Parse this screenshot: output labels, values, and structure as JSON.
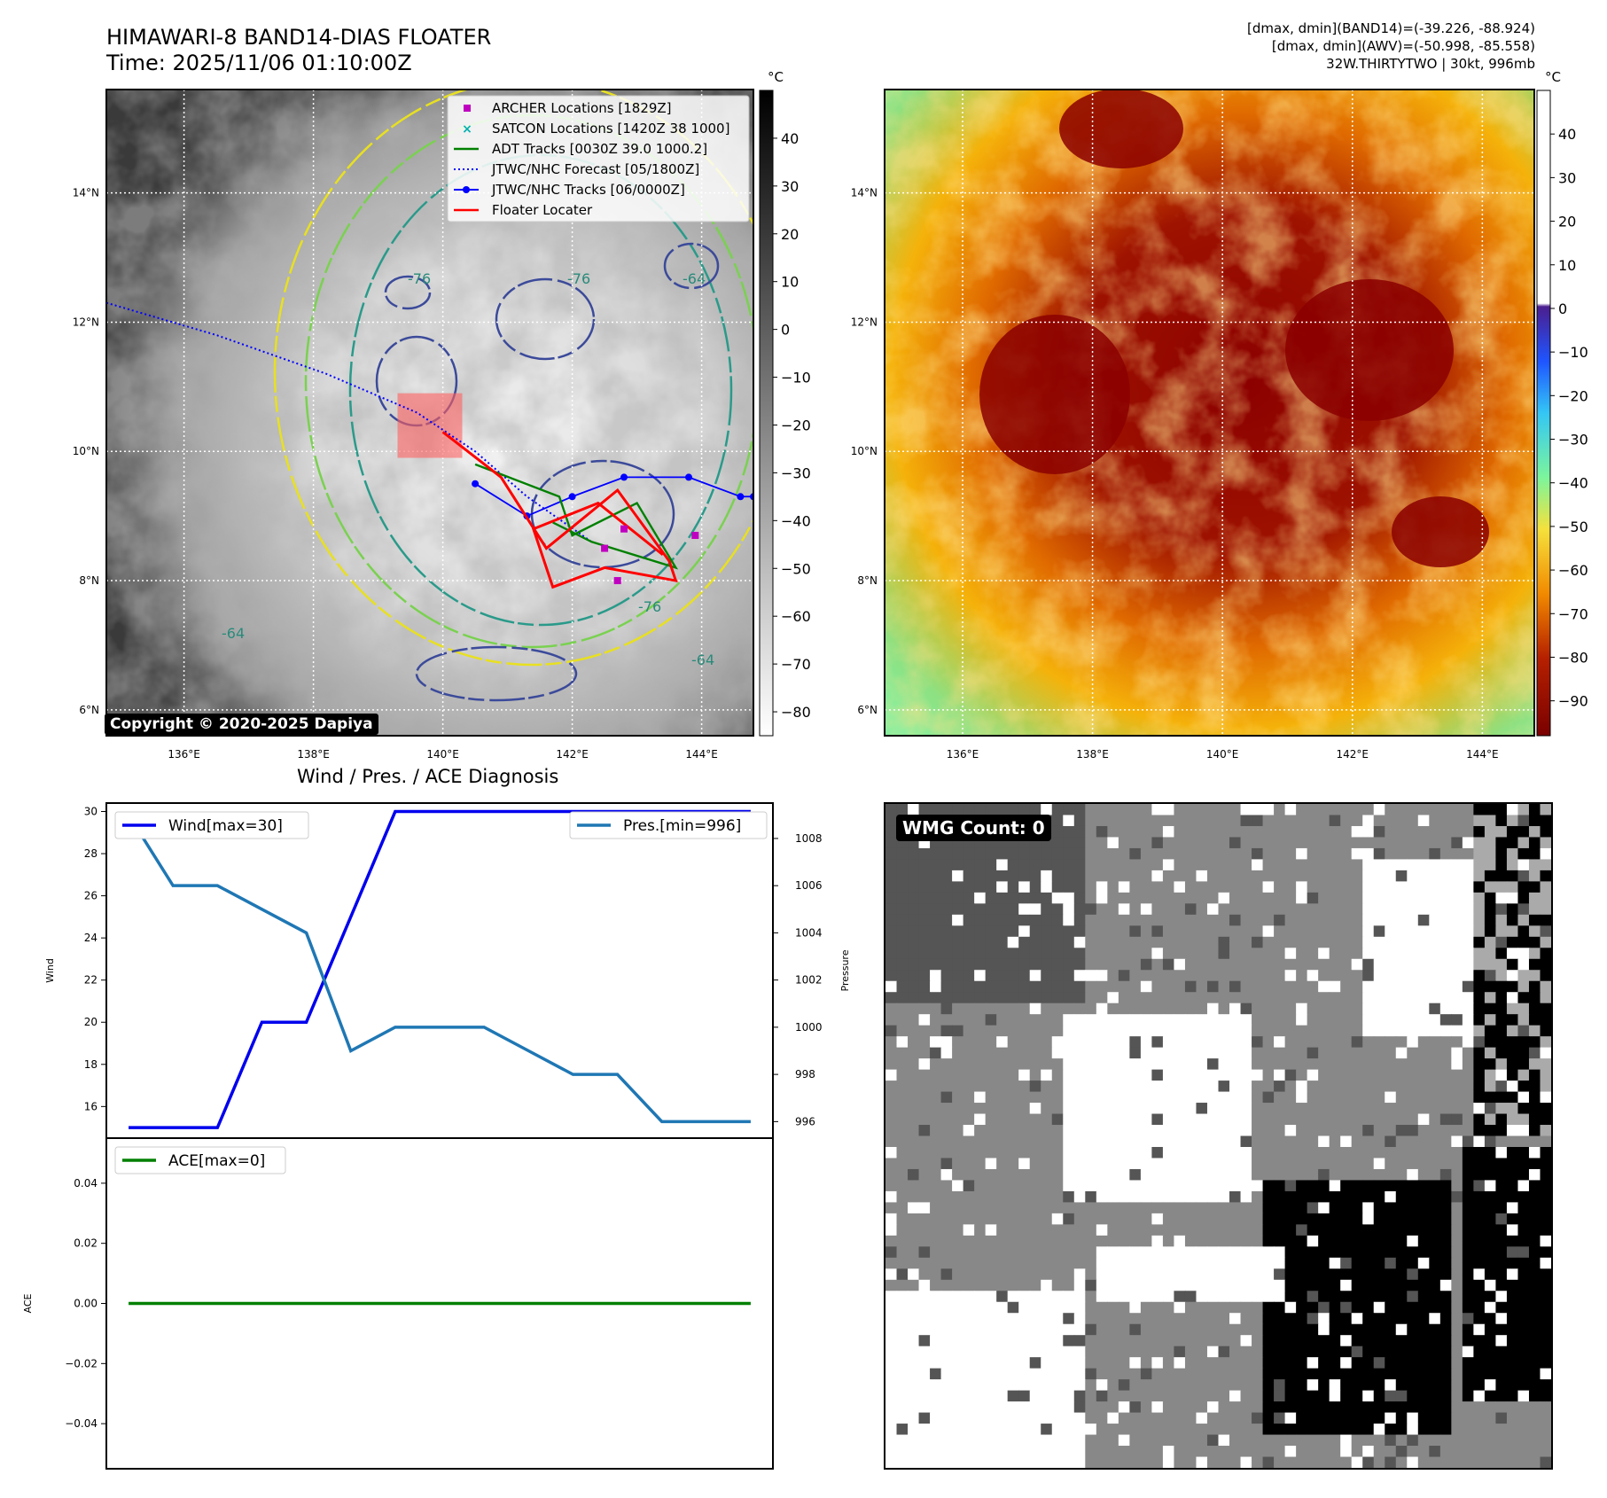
{
  "header": {
    "title_line1": "HIMAWARI-8 BAND14-DIAS FLOATER",
    "title_line2": "Time: 2025/11/06 01:10:00Z",
    "meta_line1": "[dmax, dmin](BAND14)=(-39.226, -88.924)",
    "meta_line2": "[dmax, dmin](AWV)=(-50.998, -85.558)",
    "meta_line3": "32W.THIRTYTWO | 30kt, 996mb"
  },
  "copyright": "Copyright © 2020-2025 Dapiya",
  "wmg_label": "WMG Count: 0",
  "colors": {
    "archer": "#c000c0",
    "satcon": "#00b0b0",
    "adt": "#008000",
    "jtwc": "#0000ff",
    "floater": "#ff0000",
    "wind": "#0000ee",
    "pres": "#1f77b4",
    "ace": "#008000"
  },
  "chart_data": [
    {
      "id": "ir_gray",
      "type": "heatmap",
      "unit": "°C",
      "x_ticks": [
        "136°E",
        "138°E",
        "140°E",
        "142°E",
        "144°E"
      ],
      "y_ticks": [
        "14°N",
        "12°N",
        "10°N",
        "8°N",
        "6°N"
      ],
      "colorbar_ticks": [
        "40",
        "30",
        "20",
        "10",
        "0",
        "−10",
        "−20",
        "−30",
        "−40",
        "−50",
        "−60",
        "−70",
        "−80"
      ],
      "xlim": [
        134.8,
        144.8
      ],
      "ylim": [
        5.6,
        15.6
      ],
      "legend": [
        "ARCHER Locations [1829Z]",
        "SATCON Locations [1420Z 38 1000]",
        "ADT Tracks [0030Z 39.0 1000.2]",
        "JTWC/NHC Forecast [05/1800Z]",
        "JTWC/NHC Tracks [06/0000Z]",
        "Floater Locater"
      ],
      "contour_labels": [
        "-64",
        "-76",
        "-76",
        "-64",
        "-64",
        "-76"
      ],
      "archer_points": [
        [
          142.8,
          8.8
        ],
        [
          143.9,
          8.7
        ],
        [
          142.5,
          8.5
        ],
        [
          142.7,
          8.0
        ]
      ],
      "jtwc_forecast": [
        [
          134.8,
          12.3
        ],
        [
          136.5,
          11.8
        ],
        [
          138.2,
          11.2
        ],
        [
          139.6,
          10.6
        ],
        [
          140.5,
          10.0
        ],
        [
          141.3,
          9.3
        ],
        [
          142.3,
          8.6
        ]
      ],
      "jtwc_tracks": [
        [
          144.8,
          9.3
        ],
        [
          144.6,
          9.3
        ],
        [
          143.8,
          9.6
        ],
        [
          142.8,
          9.6
        ],
        [
          142.0,
          9.3
        ],
        [
          141.3,
          9.0
        ],
        [
          140.5,
          9.5
        ]
      ],
      "floater_box": [
        [
          139.3,
          9.9
        ],
        [
          140.3,
          10.9
        ]
      ]
    },
    {
      "id": "ir_color",
      "type": "heatmap",
      "unit": "°C",
      "x_ticks": [
        "136°E",
        "138°E",
        "140°E",
        "142°E",
        "144°E"
      ],
      "y_ticks": [
        "14°N",
        "12°N",
        "10°N",
        "8°N",
        "6°N"
      ],
      "colorbar_ticks": [
        "40",
        "30",
        "20",
        "10",
        "0",
        "−10",
        "−20",
        "−30",
        "−40",
        "−50",
        "−60",
        "−70",
        "−80",
        "−90"
      ],
      "xlim": [
        134.8,
        144.8
      ],
      "ylim": [
        5.6,
        15.6
      ]
    },
    {
      "id": "wind_pres",
      "type": "line",
      "title": "Wind / Pres. / ACE Diagnosis",
      "ylabel": "Wind",
      "y2label": "Pressure",
      "ylim": [
        14.5,
        30.4
      ],
      "y2lim": [
        995.3,
        1009.5
      ],
      "y_ticks": [
        16,
        18,
        20,
        22,
        24,
        26,
        28,
        30
      ],
      "y2_ticks": [
        996,
        998,
        1000,
        1002,
        1004,
        1006,
        1008
      ],
      "x": [
        0,
        1,
        2,
        3,
        4,
        5,
        6,
        7,
        8,
        9,
        10,
        11,
        12,
        13,
        14
      ],
      "series": [
        {
          "name": "Wind[max=30]",
          "values": [
            15,
            15,
            15,
            20,
            20,
            25,
            30,
            30,
            30,
            30,
            30,
            30,
            30,
            30,
            30
          ]
        },
        {
          "name": "Pres.[min=996]",
          "values": [
            1009,
            1006,
            1006,
            1005,
            1004,
            999,
            1000,
            1000,
            1000,
            999,
            998,
            998,
            996,
            996,
            996
          ]
        }
      ]
    },
    {
      "id": "ace",
      "type": "line",
      "ylabel": "ACE",
      "ylim": [
        -0.055,
        0.055
      ],
      "y_ticks": [
        0.04,
        0.02,
        0.0,
        -0.02,
        -0.04
      ],
      "y_tick_labels": [
        "0.04",
        "0.02",
        "0.00",
        "−0.02",
        "−0.04"
      ],
      "x": [
        0,
        14
      ],
      "series": [
        {
          "name": "ACE[max=0]",
          "values": [
            0,
            0
          ]
        }
      ]
    },
    {
      "id": "wmg",
      "type": "heatmap",
      "title": "WMG Count: 0"
    }
  ]
}
